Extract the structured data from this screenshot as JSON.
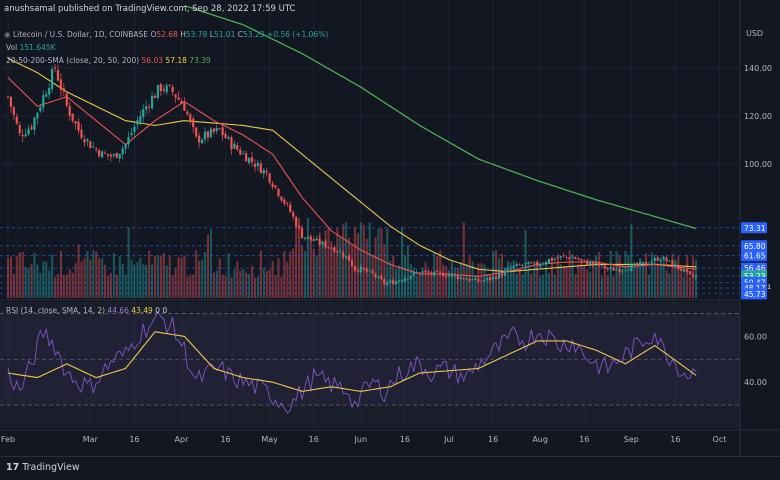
{
  "header": {
    "published_by": "anushsamal published on TradingView.com, Sep 28, 2022 17:59 UTC"
  },
  "legend": {
    "symbol": "Litecoin / U.S. Dollar, 1D, COINBASE",
    "o_label": "O",
    "o_value": "52.68",
    "h_label": "H",
    "h_value": "53.78",
    "l_label": "L",
    "l_value": "51.01",
    "c_label": "C",
    "c_value": "53.23",
    "change": "+0.56 (+1.06%)",
    "vol_label": "Vol",
    "vol_value": "151.645K",
    "sma_label": "20-50-200-SMA (close, 20, 50, 200)",
    "sma20_value": "56.03",
    "sma50_value": "57.18",
    "sma200_value": "73.39",
    "rsi_label": "RSI (14, close, SMA, 14, 2)",
    "rsi_value": "44.66",
    "rsi_sma_value": "43.49",
    "rsi_extra": "0  0"
  },
  "footer": {
    "brand": "TradingView",
    "logo_mark": "17"
  },
  "colors": {
    "background": "#131722",
    "up": "#26a69a",
    "down": "#ef5350",
    "sma20": "#ef5350",
    "sma50": "#e8c94a",
    "sma200": "#4caf50",
    "rsi": "#7e57c2",
    "rsi_sma": "#e8c94a",
    "hline": "#2962ff",
    "price_badge": "#2962ff",
    "current_price_badge": "#26a69a"
  },
  "chart_data": {
    "type": "candlestick",
    "title": "Litecoin / U.S. Dollar, 1D, COINBASE",
    "price_axis": {
      "label": "USD",
      "ticks": [
        140,
        120,
        100
      ],
      "ylim": [
        44,
        160
      ],
      "scale": "linear"
    },
    "x_ticks": [
      "Feb",
      "Mar",
      "16",
      "Apr",
      "16",
      "May",
      "16",
      "Jun",
      "16",
      "Jul",
      "16",
      "Aug",
      "16",
      "Sep",
      "16",
      "Oct"
    ],
    "x_tick_days": [
      0,
      28,
      43,
      59,
      74,
      89,
      104,
      120,
      135,
      150,
      165,
      181,
      196,
      212,
      227,
      242
    ],
    "horizontal_levels": [
      73.31,
      65.8,
      61.65,
      56.46,
      53.23,
      50.47,
      48.17,
      45.73
    ],
    "price_labels": [
      "73.31",
      "65.80",
      "61.65",
      "56.46",
      "53.23",
      "50.47",
      "48.17",
      "45.73"
    ],
    "current_price": "53.23",
    "countdown": "06:00:31",
    "close_anchors": [
      [
        0,
        128
      ],
      [
        4,
        112
      ],
      [
        8,
        116
      ],
      [
        12,
        128
      ],
      [
        16,
        140
      ],
      [
        20,
        124
      ],
      [
        24,
        114
      ],
      [
        28,
        108
      ],
      [
        32,
        104
      ],
      [
        36,
        103
      ],
      [
        40,
        108
      ],
      [
        44,
        118
      ],
      [
        48,
        126
      ],
      [
        52,
        132
      ],
      [
        56,
        130
      ],
      [
        60,
        124
      ],
      [
        64,
        110
      ],
      [
        68,
        112
      ],
      [
        72,
        114
      ],
      [
        76,
        108
      ],
      [
        80,
        104
      ],
      [
        84,
        100
      ],
      [
        88,
        96
      ],
      [
        92,
        88
      ],
      [
        96,
        80
      ],
      [
        100,
        70
      ],
      [
        104,
        68
      ],
      [
        108,
        66
      ],
      [
        112,
        64
      ],
      [
        116,
        60
      ],
      [
        118,
        56
      ],
      [
        120,
        56
      ],
      [
        124,
        54
      ],
      [
        128,
        50
      ],
      [
        132,
        51
      ],
      [
        136,
        53
      ],
      [
        140,
        55
      ],
      [
        144,
        54
      ],
      [
        148,
        54
      ],
      [
        152,
        53
      ],
      [
        156,
        52
      ],
      [
        160,
        51
      ],
      [
        164,
        52
      ],
      [
        168,
        54
      ],
      [
        172,
        57
      ],
      [
        176,
        58
      ],
      [
        180,
        58
      ],
      [
        184,
        60
      ],
      [
        188,
        61
      ],
      [
        192,
        61
      ],
      [
        196,
        59
      ],
      [
        200,
        58
      ],
      [
        204,
        56
      ],
      [
        208,
        56
      ],
      [
        212,
        57
      ],
      [
        216,
        58
      ],
      [
        220,
        60
      ],
      [
        222,
        61
      ],
      [
        226,
        58
      ],
      [
        230,
        55
      ],
      [
        232,
        53
      ],
      [
        234,
        53
      ]
    ],
    "sma20_anchors": [
      [
        0,
        136
      ],
      [
        10,
        124
      ],
      [
        20,
        128
      ],
      [
        30,
        118
      ],
      [
        40,
        108
      ],
      [
        50,
        118
      ],
      [
        60,
        126
      ],
      [
        70,
        118
      ],
      [
        80,
        112
      ],
      [
        90,
        104
      ],
      [
        100,
        86
      ],
      [
        110,
        72
      ],
      [
        120,
        64
      ],
      [
        130,
        58
      ],
      [
        140,
        54
      ],
      [
        150,
        54
      ],
      [
        160,
        53
      ],
      [
        170,
        55
      ],
      [
        180,
        58
      ],
      [
        190,
        59
      ],
      [
        200,
        59
      ],
      [
        210,
        57
      ],
      [
        220,
        58
      ],
      [
        234,
        56
      ]
    ],
    "sma50_anchors": [
      [
        0,
        144
      ],
      [
        10,
        138
      ],
      [
        20,
        130
      ],
      [
        30,
        124
      ],
      [
        40,
        118
      ],
      [
        50,
        116
      ],
      [
        60,
        118
      ],
      [
        70,
        117
      ],
      [
        80,
        116
      ],
      [
        90,
        114
      ],
      [
        100,
        104
      ],
      [
        110,
        94
      ],
      [
        120,
        84
      ],
      [
        130,
        74
      ],
      [
        140,
        66
      ],
      [
        150,
        60
      ],
      [
        160,
        56
      ],
      [
        170,
        55
      ],
      [
        180,
        56
      ],
      [
        190,
        57
      ],
      [
        200,
        58
      ],
      [
        210,
        58
      ],
      [
        220,
        58
      ],
      [
        234,
        57
      ]
    ],
    "sma200_anchors": [
      [
        60,
        166
      ],
      [
        80,
        158
      ],
      [
        100,
        146
      ],
      [
        120,
        132
      ],
      [
        140,
        116
      ],
      [
        160,
        102
      ],
      [
        180,
        93
      ],
      [
        200,
        85
      ],
      [
        220,
        78
      ],
      [
        234,
        73
      ]
    ],
    "rsi_axis": {
      "ticks": [
        60,
        40
      ],
      "ylim": [
        20,
        75
      ],
      "bands": [
        70,
        50,
        30
      ]
    },
    "rsi_anchors": [
      [
        0,
        44
      ],
      [
        4,
        36
      ],
      [
        8,
        48
      ],
      [
        12,
        62
      ],
      [
        16,
        56
      ],
      [
        20,
        44
      ],
      [
        24,
        40
      ],
      [
        28,
        38
      ],
      [
        32,
        44
      ],
      [
        36,
        50
      ],
      [
        40,
        52
      ],
      [
        44,
        60
      ],
      [
        48,
        65
      ],
      [
        52,
        68
      ],
      [
        56,
        64
      ],
      [
        60,
        54
      ],
      [
        64,
        40
      ],
      [
        68,
        44
      ],
      [
        72,
        46
      ],
      [
        76,
        42
      ],
      [
        80,
        40
      ],
      [
        84,
        38
      ],
      [
        88,
        36
      ],
      [
        92,
        32
      ],
      [
        96,
        30
      ],
      [
        100,
        36
      ],
      [
        104,
        42
      ],
      [
        108,
        40
      ],
      [
        112,
        38
      ],
      [
        116,
        36
      ],
      [
        118,
        30
      ],
      [
        120,
        34
      ],
      [
        124,
        40
      ],
      [
        128,
        36
      ],
      [
        132,
        42
      ],
      [
        136,
        46
      ],
      [
        140,
        48
      ],
      [
        144,
        44
      ],
      [
        148,
        46
      ],
      [
        152,
        44
      ],
      [
        156,
        42
      ],
      [
        160,
        48
      ],
      [
        164,
        52
      ],
      [
        168,
        56
      ],
      [
        172,
        60
      ],
      [
        176,
        58
      ],
      [
        180,
        62
      ],
      [
        184,
        60
      ],
      [
        188,
        56
      ],
      [
        192,
        58
      ],
      [
        196,
        52
      ],
      [
        200,
        48
      ],
      [
        204,
        46
      ],
      [
        208,
        50
      ],
      [
        212,
        54
      ],
      [
        216,
        58
      ],
      [
        220,
        62
      ],
      [
        222,
        56
      ],
      [
        226,
        50
      ],
      [
        230,
        44
      ],
      [
        234,
        44
      ]
    ],
    "rsi_sma_anchors": [
      [
        0,
        44
      ],
      [
        10,
        42
      ],
      [
        20,
        48
      ],
      [
        30,
        42
      ],
      [
        40,
        46
      ],
      [
        50,
        62
      ],
      [
        60,
        60
      ],
      [
        70,
        46
      ],
      [
        80,
        42
      ],
      [
        90,
        40
      ],
      [
        100,
        36
      ],
      [
        110,
        38
      ],
      [
        120,
        36
      ],
      [
        130,
        38
      ],
      [
        140,
        44
      ],
      [
        150,
        45
      ],
      [
        160,
        46
      ],
      [
        170,
        52
      ],
      [
        180,
        58
      ],
      [
        190,
        58
      ],
      [
        200,
        54
      ],
      [
        210,
        48
      ],
      [
        220,
        56
      ],
      [
        234,
        43
      ]
    ]
  }
}
